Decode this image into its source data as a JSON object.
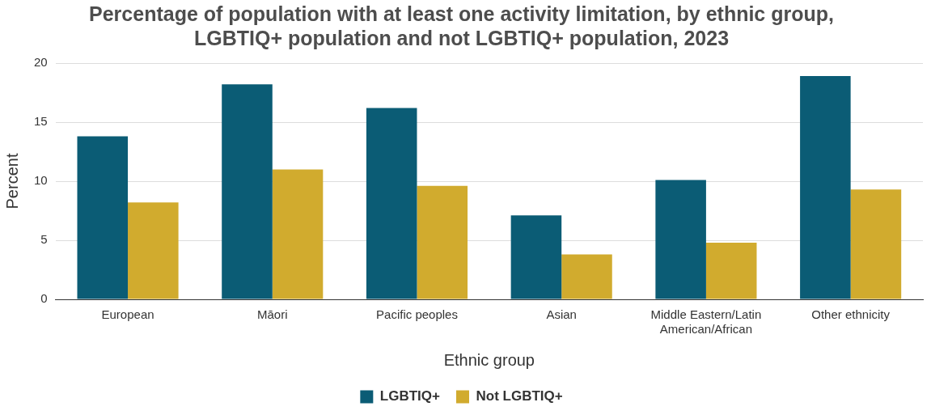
{
  "chart_data": {
    "type": "bar",
    "title": "Percentage of population with at least one activity limitation, by ethnic group, LGBTIQ+ population and not LGBTIQ+ population, 2023",
    "xlabel": "Ethnic group",
    "ylabel": "Percent",
    "categories": [
      "European",
      "Māori",
      "Pacific peoples",
      "Asian",
      "Middle Eastern/Latin American/African",
      "Other ethnicity"
    ],
    "series": [
      {
        "name": "LGBTIQ+",
        "color": "#0b5c75",
        "values": [
          13.8,
          18.2,
          16.2,
          7.1,
          10.1,
          18.9
        ]
      },
      {
        "name": "Not LGBTIQ+",
        "color": "#d1ab2e",
        "values": [
          8.2,
          11.0,
          9.6,
          3.8,
          4.8,
          9.3
        ]
      }
    ],
    "ylim": [
      0,
      20
    ],
    "yticks": [
      0,
      5,
      10,
      15,
      20
    ],
    "grid": "y",
    "legend": "bottom"
  }
}
